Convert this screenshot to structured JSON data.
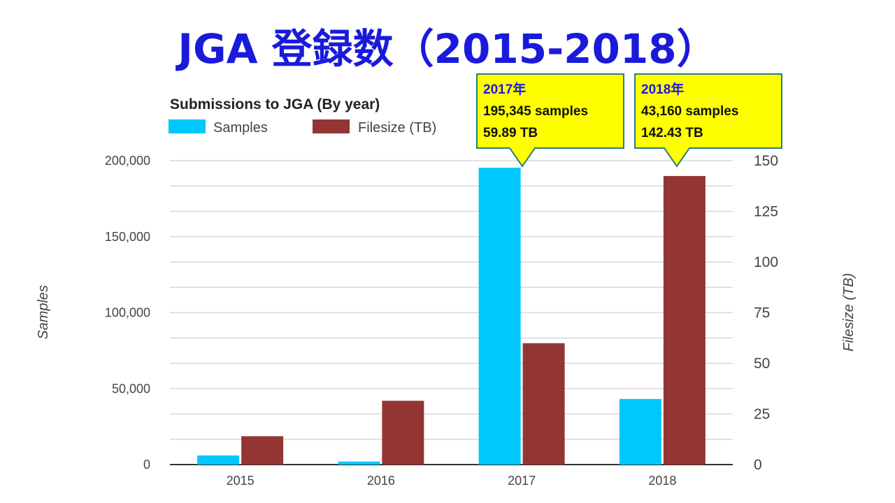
{
  "slide": {
    "title": "JGA 登録数（2015-2018）"
  },
  "chart_data": {
    "type": "bar",
    "title": "Submissions to JGA (By year)",
    "categories": [
      "2015",
      "2016",
      "2017",
      "2018"
    ],
    "series": [
      {
        "name": "Samples",
        "axis": "left",
        "values": [
          6000,
          2000,
          195345,
          43160
        ],
        "color": "#00c8ff"
      },
      {
        "name": "Filesize (TB)",
        "axis": "right",
        "values": [
          14,
          31.5,
          59.89,
          142.43
        ],
        "color": "#933633"
      }
    ],
    "ylabel": "Samples",
    "y2label": "Filesize (TB)",
    "ylim": [
      0,
      200000
    ],
    "y2lim": [
      0,
      150
    ],
    "yticks": [
      "0",
      "50,000",
      "100,000",
      "150,000",
      "200,000"
    ],
    "y2ticks": [
      "0",
      "25",
      "50",
      "75",
      "100",
      "125",
      "150"
    ],
    "grid": true,
    "legend_position": "top-left",
    "annotations": [
      {
        "category": "2017",
        "lines": [
          "2017年",
          "195,345 samples",
          "59.89 TB"
        ]
      },
      {
        "category": "2018",
        "lines": [
          "2018年",
          "43,160 samples",
          "142.43 TB"
        ]
      }
    ]
  }
}
